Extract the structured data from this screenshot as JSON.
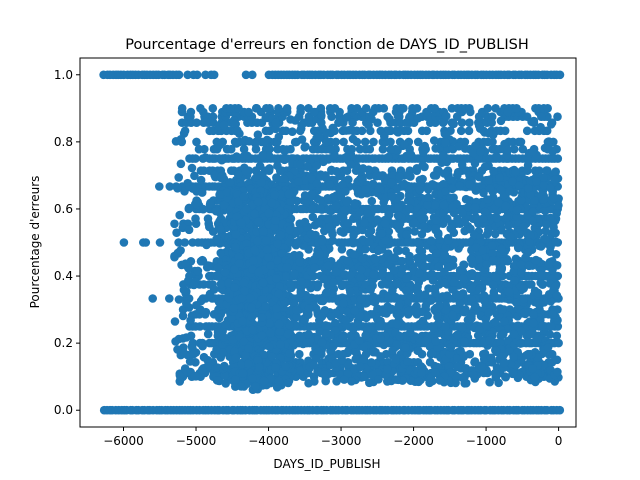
{
  "chart_data": {
    "type": "scatter",
    "title": "Pourcentage d'erreurs en fonction de DAYS_ID_PUBLISH",
    "xlabel": "DAYS_ID_PUBLISH",
    "ylabel": "Pourcentage d'erreurs",
    "xlim": [
      -6600,
      240
    ],
    "ylim": [
      -0.05,
      1.05
    ],
    "xticks": [
      -6000,
      -5000,
      -4000,
      -3000,
      -2000,
      -1000,
      0
    ],
    "yticks": [
      0.0,
      0.2,
      0.4,
      0.6,
      0.8,
      1.0
    ],
    "xtick_labels": [
      "−6000",
      "−5000",
      "−4000",
      "−3000",
      "−2000",
      "−1000",
      "0"
    ],
    "ytick_labels": [
      "0.0",
      "0.2",
      "0.4",
      "0.6",
      "0.8",
      "1.0"
    ],
    "grid": false,
    "marker_color": "#1f77b4",
    "x_range_of_points": [
      -6280,
      0
    ],
    "levels": [
      0.0,
      1.0,
      0.5,
      0.333,
      0.667,
      0.25,
      0.75,
      0.2,
      0.4,
      0.6,
      0.8,
      0.167,
      0.833,
      0.143,
      0.286,
      0.429,
      0.571,
      0.714,
      0.857,
      0.125,
      0.375,
      0.625,
      0.875,
      0.111,
      0.222,
      0.444,
      0.556,
      0.778,
      0.889,
      0.1,
      0.3,
      0.7,
      0.9
    ]
  }
}
